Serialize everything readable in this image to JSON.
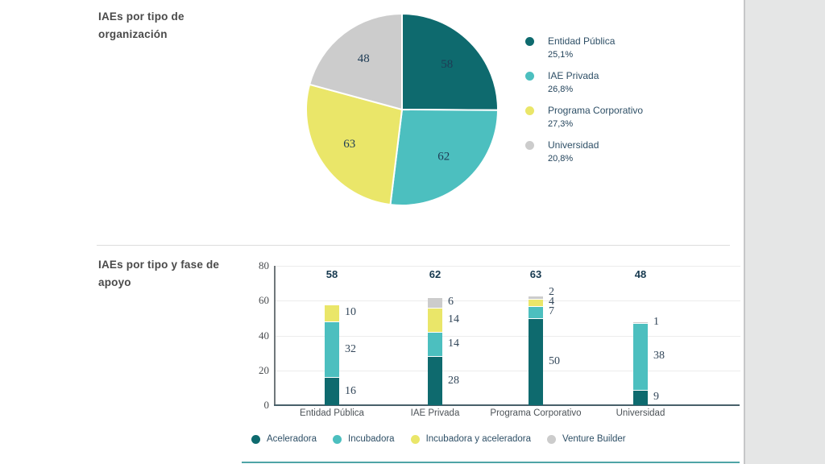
{
  "sections": {
    "pie": {
      "title_line1": "IAEs por tipo de",
      "title_line2": "organización"
    },
    "bar": {
      "title_line1": "IAEs por tipo y fase de",
      "title_line2": "apoyo"
    }
  },
  "colors": {
    "dark_teal": "#0e6a6e",
    "light_teal": "#4cbfbf",
    "yellow": "#eae669",
    "gray": "#cccccc",
    "value_text": "#1e3c55",
    "gutter_bg": "#e5e6e6"
  },
  "chart_data": [
    {
      "type": "pie",
      "title": "IAEs por tipo de organización",
      "labels": [
        "Entidad Pública",
        "IAE Privada",
        "Programa Corporativo",
        "Universidad"
      ],
      "values": [
        58,
        62,
        63,
        48
      ],
      "percentages": [
        "25,1%",
        "26,8%",
        "27,3%",
        "20,8%"
      ],
      "colors": [
        "#0e6a6e",
        "#4cbfbf",
        "#eae669",
        "#cccccc"
      ],
      "start_angle": "top",
      "direction": "clockwise",
      "legend_position": "right"
    },
    {
      "type": "bar",
      "stacked": true,
      "title": "IAEs por tipo y fase de apoyo",
      "categories": [
        "Entidad Pública",
        "IAE Privada",
        "Programa Corporativo",
        "Universidad"
      ],
      "series": [
        {
          "name": "Aceleradora",
          "color": "#0e6a6e",
          "values": [
            16,
            28,
            50,
            9
          ]
        },
        {
          "name": "Incubadora",
          "color": "#4cbfbf",
          "values": [
            32,
            14,
            7,
            38
          ]
        },
        {
          "name": "Incubadora y aceleradora",
          "color": "#eae669",
          "values": [
            10,
            14,
            4,
            0
          ]
        },
        {
          "name": "Venture Builder",
          "color": "#cccccc",
          "values": [
            0,
            6,
            2,
            1
          ]
        }
      ],
      "totals": [
        58,
        62,
        63,
        48
      ],
      "ylabel": "",
      "xlabel": "",
      "ylim": [
        0,
        80
      ],
      "yticks": [
        0,
        20,
        40,
        60,
        80
      ],
      "grid": true,
      "legend_position": "bottom"
    }
  ]
}
